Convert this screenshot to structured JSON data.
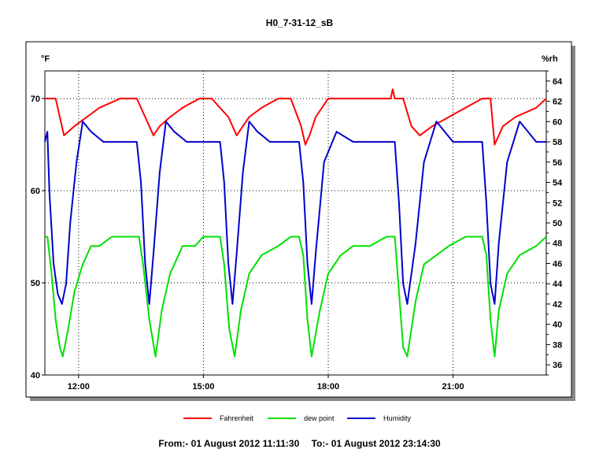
{
  "title": "H0_7-31-12_sB",
  "colors": {
    "fahrenheit": "#ff0000",
    "dew_point": "#00e000",
    "humidity": "#0000cc",
    "grid": "#000000",
    "frame": "#000000"
  },
  "footer": {
    "from_label": "From:-  01 August 2012 11:11:30",
    "to_label": "To:-  01 August 2012 23:14:30"
  },
  "chart_data": {
    "type": "line",
    "title": "H0_7-31-12_sB",
    "x_unit": "hours",
    "xlim": [
      11.19,
      23.24
    ],
    "x_ticks": [
      {
        "value": 12,
        "label": "12:00"
      },
      {
        "value": 15,
        "label": "15:00"
      },
      {
        "value": 18,
        "label": "18:00"
      },
      {
        "value": 21,
        "label": "21:00"
      }
    ],
    "y_left": {
      "label": "°F",
      "lim": [
        40,
        73
      ],
      "ticks": [
        40,
        50,
        60,
        70
      ]
    },
    "y_right": {
      "label": "%rh",
      "lim": [
        35,
        65
      ],
      "ticks": [
        36,
        38,
        40,
        42,
        44,
        46,
        48,
        50,
        52,
        54,
        56,
        58,
        60,
        62,
        64
      ]
    },
    "grid": true,
    "legend_position": "bottom",
    "series": [
      {
        "name": "Fahrenheit",
        "axis": "left",
        "x": [
          11.19,
          11.45,
          11.55,
          11.65,
          11.9,
          12.2,
          12.5,
          13.0,
          13.4,
          13.6,
          13.8,
          13.95,
          14.2,
          14.5,
          14.9,
          15.2,
          15.6,
          15.8,
          15.95,
          16.1,
          16.4,
          16.8,
          17.1,
          17.35,
          17.45,
          17.55,
          17.7,
          18.0,
          18.5,
          19.0,
          19.5,
          19.55,
          19.6,
          19.8,
          20.0,
          20.2,
          20.5,
          20.9,
          21.3,
          21.7,
          21.9,
          22.0,
          22.2,
          22.5,
          23.0,
          23.24
        ],
        "y": [
          70,
          70,
          68,
          66,
          67,
          68,
          69,
          70,
          70,
          68,
          66,
          67,
          68,
          69,
          70,
          70,
          68,
          66,
          67,
          68,
          69,
          70,
          70,
          67,
          65,
          66,
          68,
          70,
          70,
          70,
          70,
          71,
          70,
          70,
          67,
          66,
          67,
          68,
          69,
          70,
          70,
          65,
          67,
          68,
          69,
          70
        ]
      },
      {
        "name": "dew point",
        "axis": "left",
        "x": [
          11.19,
          11.25,
          11.35,
          11.45,
          11.55,
          11.62,
          11.75,
          11.9,
          12.1,
          12.3,
          12.5,
          12.8,
          13.0,
          13.2,
          13.45,
          13.55,
          13.7,
          13.85,
          14.0,
          14.2,
          14.5,
          14.8,
          15.0,
          15.2,
          15.4,
          15.5,
          15.62,
          15.75,
          15.9,
          16.1,
          16.4,
          16.8,
          17.1,
          17.3,
          17.4,
          17.5,
          17.6,
          17.8,
          18.0,
          18.3,
          18.6,
          19.0,
          19.4,
          19.6,
          19.7,
          19.8,
          19.9,
          20.1,
          20.3,
          20.6,
          20.9,
          21.3,
          21.7,
          21.8,
          21.9,
          22.0,
          22.1,
          22.3,
          22.6,
          23.0,
          23.24
        ],
        "y": [
          55,
          55,
          51,
          46,
          43,
          42,
          45,
          49,
          52,
          54,
          54,
          55,
          55,
          55,
          55,
          52,
          46,
          42,
          47,
          51,
          54,
          54,
          55,
          55,
          55,
          52,
          45,
          42,
          47,
          51,
          53,
          54,
          55,
          55,
          53,
          46,
          42,
          47,
          51,
          53,
          54,
          54,
          55,
          55,
          49,
          43,
          42,
          48,
          52,
          53,
          54,
          55,
          55,
          53,
          46,
          42,
          47,
          51,
          53,
          54,
          55
        ]
      },
      {
        "name": "Humidity",
        "axis": "right",
        "x": [
          11.19,
          11.25,
          11.3,
          11.4,
          11.5,
          11.6,
          11.7,
          11.8,
          11.95,
          12.1,
          12.3,
          12.6,
          13.0,
          13.4,
          13.5,
          13.6,
          13.7,
          13.8,
          13.95,
          14.1,
          14.3,
          14.6,
          15.0,
          15.4,
          15.5,
          15.6,
          15.7,
          15.8,
          15.95,
          16.1,
          16.3,
          16.6,
          17.0,
          17.3,
          17.4,
          17.5,
          17.6,
          17.7,
          17.9,
          18.2,
          18.6,
          19.0,
          19.5,
          19.6,
          19.7,
          19.8,
          19.9,
          20.1,
          20.3,
          20.6,
          21.0,
          21.5,
          21.7,
          21.8,
          21.9,
          22.0,
          22.1,
          22.3,
          22.6,
          23.0,
          23.24
        ],
        "y": [
          58,
          59,
          53,
          46,
          43,
          42,
          44,
          50,
          56,
          60,
          59,
          58,
          58,
          58,
          54,
          46,
          42,
          47,
          55,
          60,
          59,
          58,
          58,
          58,
          54,
          46,
          42,
          47,
          55,
          60,
          59,
          58,
          58,
          58,
          54,
          46,
          42,
          47,
          56,
          59,
          58,
          58,
          58,
          58,
          52,
          44,
          42,
          48,
          56,
          60,
          58,
          58,
          58,
          52,
          44,
          42,
          48,
          56,
          60,
          58,
          58
        ]
      }
    ]
  }
}
